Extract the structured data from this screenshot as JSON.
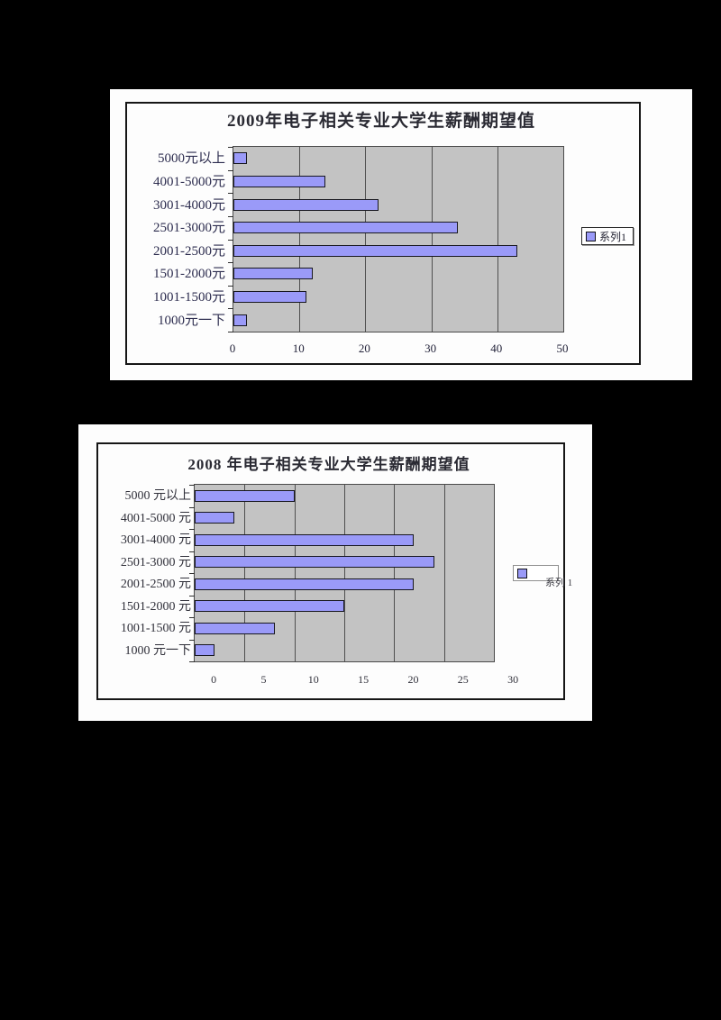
{
  "page": {
    "background_color": "#000000",
    "figure_background_color": "#fdfdfd"
  },
  "chart_data": [
    {
      "type": "bar",
      "orientation": "horizontal",
      "title": "2009年电子相关专业大学生薪酬期望值",
      "legend": "系列1",
      "legend_position": "right-middle",
      "categories": [
        "5000元以上",
        "4001-5000元",
        "3001-4000元",
        "2501-3000元",
        "2001-2500元",
        "1501-2000元",
        "1001-1500元",
        "1000元一下"
      ],
      "values": [
        2,
        14,
        22,
        34,
        43,
        12,
        11,
        2
      ],
      "xlim": [
        0,
        50
      ],
      "x_ticks": [
        0,
        10,
        20,
        30,
        40,
        50
      ],
      "grid": true,
      "plot_bg": "#c3c3c3",
      "bar_color": "#9a9af8",
      "bar_border": "#17171f",
      "tick_label_shift": 0
    },
    {
      "type": "bar",
      "orientation": "horizontal",
      "title": "2008 年电子相关专业大学生薪酬期望值",
      "legend": "系列 1",
      "legend_position": "right-middle",
      "categories": [
        "5000 元以上",
        "4001-5000 元",
        "3001-4000 元",
        "2501-3000 元",
        "2001-2500 元",
        "1501-2000 元",
        "1001-1500 元",
        "1000 元一下"
      ],
      "values": [
        10,
        4,
        22,
        24,
        22,
        15,
        8,
        2
      ],
      "xlim": [
        0,
        30
      ],
      "x_ticks": [
        0,
        5,
        10,
        15,
        20,
        25,
        30
      ],
      "grid": true,
      "plot_bg": "#c3c3c3",
      "bar_color": "#9a9af8",
      "bar_border": "#17171f",
      "tick_label_shift": 2
    }
  ]
}
